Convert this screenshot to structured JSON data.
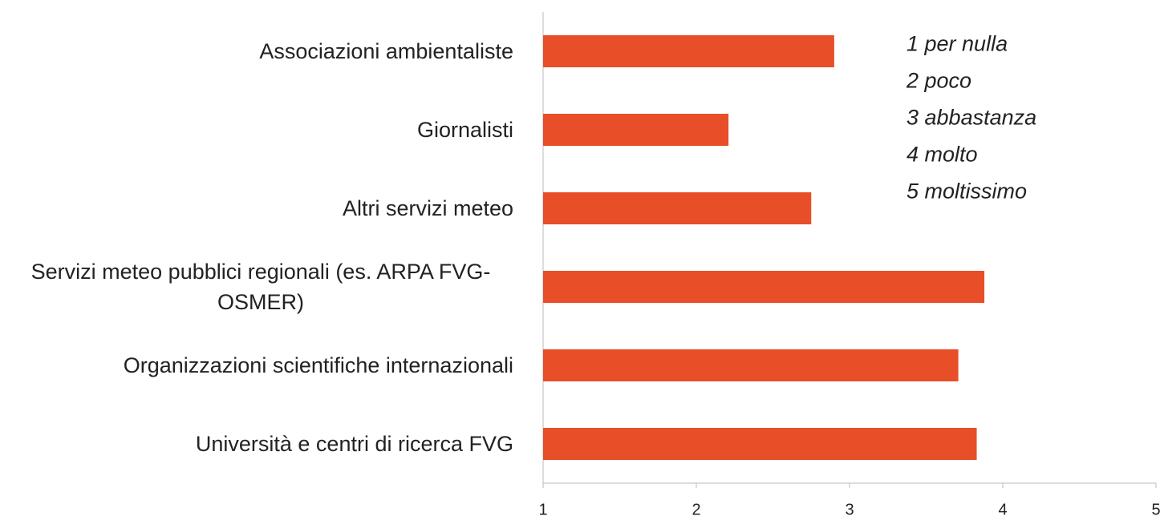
{
  "chart_data": {
    "type": "barh",
    "categories": [
      "Associazioni ambientaliste",
      "Giornalisti",
      "Altri servizi meteo",
      "Servizi meteo pubblici regionali (es. ARPA FVG-OSMER)",
      "Organizzazioni scientifiche internazionali",
      "Università e centri di ricerca FVG"
    ],
    "values": [
      2.9,
      2.21,
      2.75,
      3.88,
      3.71,
      3.83
    ],
    "color": "#e84e27",
    "xlim": [
      1,
      5
    ],
    "xticks": [
      1,
      2,
      3,
      4,
      5
    ],
    "annotations": [
      "1 per nulla",
      "2 poco",
      "3 abbastanza",
      "4 molto",
      "5 moltissimo"
    ]
  }
}
